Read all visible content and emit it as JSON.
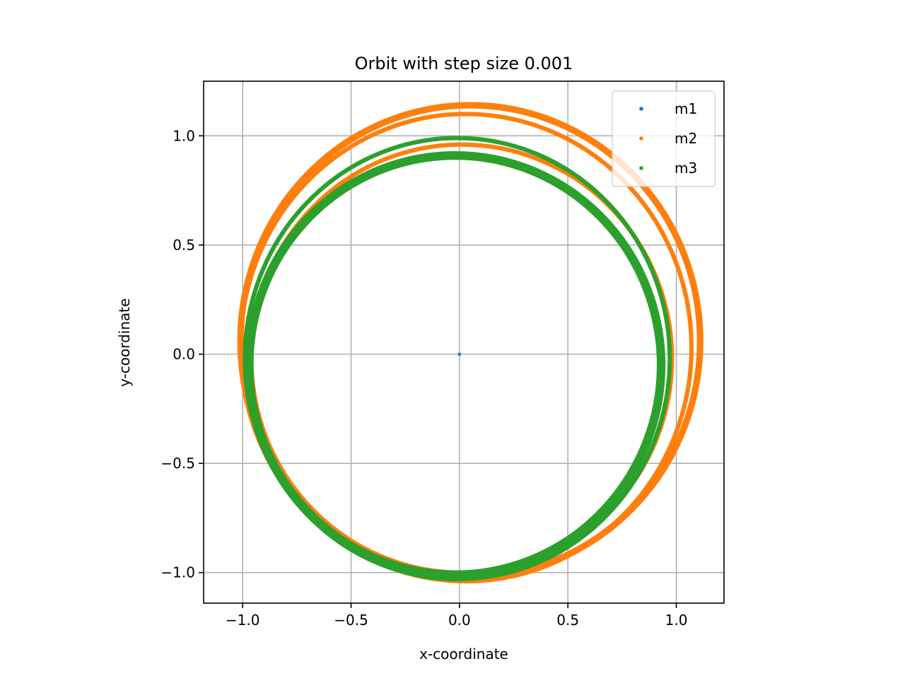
{
  "chart_data": {
    "type": "scatter",
    "title": "Orbit with step size 0.001",
    "xlabel": "x-coordinate",
    "ylabel": "y-coordinate",
    "xlim": [
      -1.18,
      1.22
    ],
    "ylim": [
      -1.14,
      1.25
    ],
    "grid": true,
    "legend_position": "top-right",
    "x_ticks": [
      -1.0,
      -0.5,
      0.0,
      0.5,
      1.0
    ],
    "x_tick_labels": [
      "−1.0",
      "−0.5",
      "0.0",
      "0.5",
      "1.0"
    ],
    "y_ticks": [
      -1.0,
      -0.5,
      0.0,
      0.5,
      1.0
    ],
    "y_tick_labels": [
      "−1.0",
      "−0.5",
      "0.0",
      "0.5",
      "1.0"
    ],
    "series": [
      {
        "name": "m1",
        "color": "#1f77b4",
        "description_shape": "point",
        "points": [
          [
            0.0,
            0.0
          ]
        ]
      },
      {
        "name": "m2",
        "color": "#ff7f0e",
        "rings": [
          {
            "cx": 0.05,
            "cy": 0.06,
            "rx": 1.06,
            "ry": 1.08,
            "band": 0.03
          },
          {
            "cx": 0.03,
            "cy": 0.03,
            "rx": 1.04,
            "ry": 1.07,
            "band": 0.02
          },
          {
            "cx": 0.01,
            "cy": -0.02,
            "rx": 0.97,
            "ry": 0.98,
            "band": 0.02
          }
        ]
      },
      {
        "name": "m3",
        "color": "#2ca02c",
        "rings": [
          {
            "cx": -0.01,
            "cy": -0.02,
            "rx": 0.98,
            "ry": 1.01,
            "band": 0.02
          },
          {
            "cx": -0.02,
            "cy": -0.05,
            "rx": 0.95,
            "ry": 0.96,
            "band": 0.04
          }
        ]
      }
    ]
  }
}
